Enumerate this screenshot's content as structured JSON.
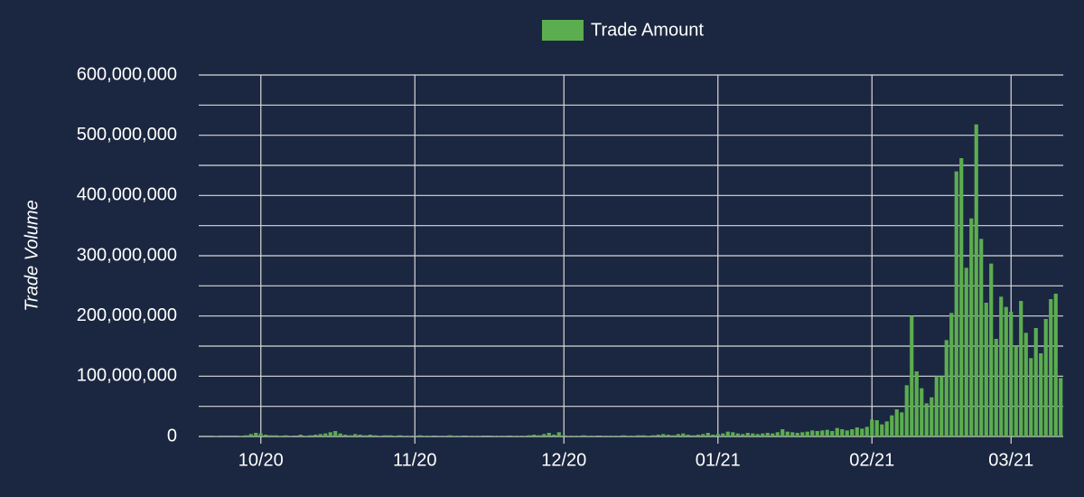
{
  "chart_data": {
    "type": "bar",
    "y_label": "Trade Volume",
    "categories": [
      null,
      null,
      null,
      null,
      null,
      null,
      null,
      null,
      null,
      null,
      null,
      null,
      "10/20",
      null,
      null,
      null,
      null,
      null,
      null,
      null,
      null,
      null,
      null,
      null,
      null,
      null,
      null,
      null,
      null,
      null,
      null,
      null,
      null,
      null,
      null,
      null,
      null,
      null,
      null,
      null,
      null,
      null,
      null,
      "11/20",
      null,
      null,
      null,
      null,
      null,
      null,
      null,
      null,
      null,
      null,
      null,
      null,
      null,
      null,
      null,
      null,
      null,
      null,
      null,
      null,
      null,
      null,
      null,
      null,
      null,
      null,
      null,
      null,
      null,
      "12/20",
      null,
      null,
      null,
      null,
      null,
      null,
      null,
      null,
      null,
      null,
      null,
      null,
      null,
      null,
      null,
      null,
      null,
      null,
      null,
      null,
      null,
      null,
      null,
      null,
      null,
      null,
      null,
      null,
      null,
      null,
      "01/21",
      null,
      null,
      null,
      null,
      null,
      null,
      null,
      null,
      null,
      null,
      null,
      null,
      null,
      null,
      null,
      null,
      null,
      null,
      null,
      null,
      null,
      null,
      null,
      null,
      null,
      null,
      null,
      null,
      null,
      null,
      "02/21",
      null,
      null,
      null,
      null,
      null,
      null,
      null,
      null,
      null,
      null,
      null,
      null,
      null,
      null,
      null,
      null,
      null,
      null,
      null,
      null,
      null,
      null,
      null,
      null,
      null,
      null,
      null,
      "03/21",
      null,
      null,
      null,
      null,
      null,
      null,
      null,
      null,
      null,
      null
    ],
    "series": [
      {
        "name": "Trade Amount",
        "color": "#5cad4f",
        "values": [
          0,
          0,
          0,
          1000000,
          0,
          0,
          0,
          0,
          1000000,
          2000000,
          4000000,
          6000000,
          5000000,
          3000000,
          2000000,
          2000000,
          1000000,
          2000000,
          1000000,
          0,
          3000000,
          1000000,
          2000000,
          3000000,
          4000000,
          5000000,
          7000000,
          9000000,
          5000000,
          3000000,
          2000000,
          4000000,
          3000000,
          2000000,
          3000000,
          2000000,
          1000000,
          2000000,
          2000000,
          1000000,
          2000000,
          1000000,
          1000000,
          1000000,
          2000000,
          1000000,
          1000000,
          0,
          1000000,
          1000000,
          2000000,
          1000000,
          1000000,
          0,
          1000000,
          1000000,
          1000000,
          0,
          0,
          1000000,
          1000000,
          1000000,
          0,
          1000000,
          1000000,
          1000000,
          2000000,
          3000000,
          2000000,
          4000000,
          6000000,
          3000000,
          7000000,
          2000000,
          1000000,
          1000000,
          1000000,
          2000000,
          1000000,
          1000000,
          0,
          1000000,
          1000000,
          1000000,
          1000000,
          2000000,
          1000000,
          1000000,
          2000000,
          2000000,
          1000000,
          2000000,
          3000000,
          4000000,
          3000000,
          2000000,
          4000000,
          5000000,
          3000000,
          2000000,
          3000000,
          4000000,
          6000000,
          3000000,
          4000000,
          5000000,
          8000000,
          7000000,
          5000000,
          4000000,
          6000000,
          5000000,
          4000000,
          5000000,
          6000000,
          5000000,
          7000000,
          12000000,
          8000000,
          7000000,
          6000000,
          7000000,
          8000000,
          10000000,
          9000000,
          10000000,
          11000000,
          9000000,
          14000000,
          12000000,
          10000000,
          12000000,
          15000000,
          13000000,
          16000000,
          28000000,
          27000000,
          20000000,
          25000000,
          35000000,
          45000000,
          40000000,
          85000000,
          200000000,
          108000000,
          80000000,
          55000000,
          65000000,
          100000000,
          100000000,
          160000000,
          205000000,
          440000000,
          462000000,
          280000000,
          362000000,
          518000000,
          328000000,
          222000000,
          287000000,
          162000000,
          232000000,
          215000000,
          207000000,
          150000000,
          225000000,
          172000000,
          130000000,
          180000000,
          138000000,
          195000000,
          228000000,
          237000000,
          97000000
        ]
      }
    ],
    "ylim": [
      0,
      600000000
    ],
    "yticks": [
      0,
      {
        "value": 100000000,
        "label": "100,000,000"
      },
      {
        "value": 200000000,
        "label": "200,000,000"
      },
      {
        "value": 300000000,
        "label": "300,000,000"
      },
      {
        "value": 400000000,
        "label": "400,000,000"
      },
      {
        "value": 500000000,
        "label": "500,000,000"
      },
      {
        "value": 600000000,
        "label": "600,000,000"
      }
    ],
    "minor_yticks": [
      50000000,
      150000000,
      250000000,
      350000000,
      450000000,
      550000000
    ],
    "grid": true
  }
}
